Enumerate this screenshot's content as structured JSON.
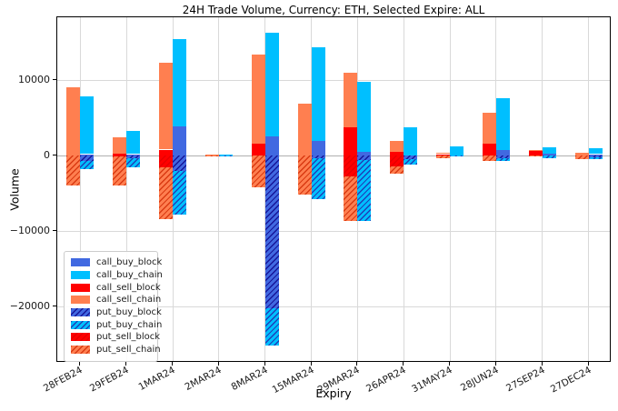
{
  "chart_data": {
    "type": "bar",
    "stacked": true,
    "title": "24H Trade Volume, Currency: ETH, Selected Expire: ALL",
    "xlabel": "Expiry",
    "ylabel": "Volume",
    "ylim": [
      -27400,
      18300
    ],
    "yticks": [
      10000,
      0,
      -10000,
      -20000
    ],
    "grid": true,
    "legend_position": "lower left",
    "categories": [
      "28FEB24",
      "29FEB24",
      "1MAR24",
      "2MAR24",
      "8MAR24",
      "15MAR24",
      "29MAR24",
      "26APR24",
      "31MAY24",
      "28JUN24",
      "27SEP24",
      "27DEC24"
    ],
    "series": [
      {
        "name": "call_buy_block",
        "bar": "buy",
        "color": "#4169e1",
        "hatch": false,
        "hatch_color": null,
        "values": [
          200,
          200,
          3900,
          0,
          2600,
          2000,
          500,
          0,
          0,
          800,
          300,
          200
        ]
      },
      {
        "name": "call_buy_chain",
        "bar": "buy",
        "color": "#00bfff",
        "hatch": false,
        "hatch_color": null,
        "values": [
          7600,
          3100,
          11500,
          100,
          13600,
          12300,
          9300,
          3800,
          1200,
          6800,
          800,
          800
        ]
      },
      {
        "name": "call_sell_block",
        "bar": "sell",
        "color": "#ff0000",
        "hatch": false,
        "hatch_color": null,
        "values": [
          0,
          300,
          800,
          0,
          1600,
          0,
          3700,
          500,
          200,
          1600,
          700,
          0
        ]
      },
      {
        "name": "call_sell_chain",
        "bar": "sell",
        "color": "#ff7f50",
        "hatch": false,
        "hatch_color": null,
        "values": [
          9000,
          2100,
          11500,
          150,
          11800,
          6900,
          7300,
          1400,
          200,
          4100,
          100,
          400
        ]
      },
      {
        "name": "put_buy_block",
        "bar": "buy",
        "color": "#4169e1",
        "hatch": true,
        "hatch_color": "#161699",
        "values": [
          -700,
          -300,
          -2000,
          0,
          -20200,
          -300,
          -600,
          -500,
          0,
          -400,
          0,
          -250
        ]
      },
      {
        "name": "put_buy_chain",
        "bar": "buy",
        "color": "#00bfff",
        "hatch": true,
        "hatch_color": "#1f3fb8",
        "values": [
          -1100,
          -1300,
          -5800,
          -150,
          -4900,
          -5500,
          -8000,
          -700,
          -100,
          -350,
          -400,
          -250
        ]
      },
      {
        "name": "put_sell_block",
        "bar": "sell",
        "color": "#ff0000",
        "hatch": true,
        "hatch_color": "#e60000",
        "values": [
          0,
          -100,
          -1600,
          0,
          0,
          0,
          -2700,
          -1400,
          0,
          0,
          0,
          0
        ]
      },
      {
        "name": "put_sell_chain",
        "bar": "sell",
        "color": "#ff7f50",
        "hatch": true,
        "hatch_color": "#d93a12",
        "values": [
          -4000,
          -3900,
          -6800,
          -50,
          -4200,
          -5200,
          -5900,
          -1000,
          -400,
          -750,
          -100,
          -500
        ]
      }
    ]
  }
}
